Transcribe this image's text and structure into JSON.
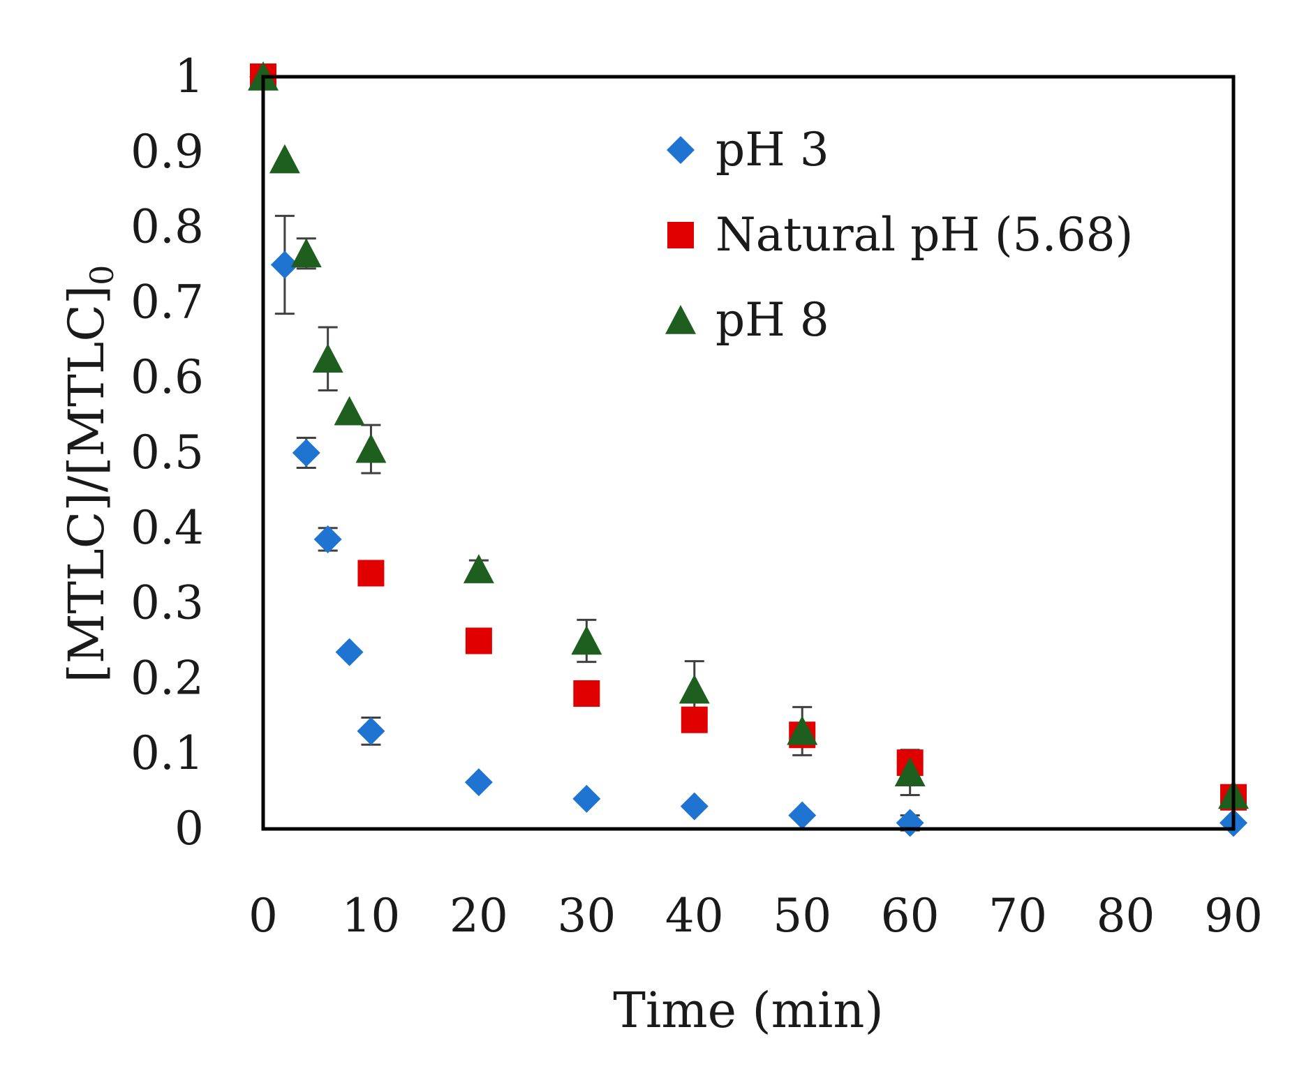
{
  "chart_data": {
    "type": "scatter",
    "title": "",
    "xlabel": "Time (min)",
    "ylabel": "[MTLC]/[MTLC]",
    "ylabel_subscript": "0",
    "xlim": [
      0,
      90
    ],
    "ylim": [
      0,
      1
    ],
    "xticks": [
      0,
      10,
      20,
      30,
      40,
      50,
      60,
      70,
      80,
      90
    ],
    "yticks": [
      0,
      0.1,
      0.2,
      0.3,
      0.4,
      0.5,
      0.6,
      0.7,
      0.8,
      0.9,
      1
    ],
    "xtick_labels": [
      "0",
      "10",
      "20",
      "30",
      "40",
      "50",
      "60",
      "70",
      "80",
      "90"
    ],
    "ytick_labels": [
      "0",
      "0.1",
      "0.2",
      "0.3",
      "0.4",
      "0.5",
      "0.6",
      "0.7",
      "0.8",
      "0.9",
      "1"
    ],
    "grid": false,
    "legend_position": "top-right",
    "series": [
      {
        "name": "pH 3",
        "marker": "diamond",
        "color": "#1f74d1",
        "points": [
          {
            "x": 0,
            "y": 1.0,
            "err": 0
          },
          {
            "x": 2,
            "y": 0.75,
            "err": 0.065
          },
          {
            "x": 4,
            "y": 0.5,
            "err": 0.02
          },
          {
            "x": 6,
            "y": 0.385,
            "err": 0.015
          },
          {
            "x": 8,
            "y": 0.235,
            "err": 0
          },
          {
            "x": 10,
            "y": 0.13,
            "err": 0.018
          },
          {
            "x": 20,
            "y": 0.062,
            "err": 0
          },
          {
            "x": 30,
            "y": 0.04,
            "err": 0
          },
          {
            "x": 40,
            "y": 0.03,
            "err": 0
          },
          {
            "x": 50,
            "y": 0.018,
            "err": 0
          },
          {
            "x": 60,
            "y": 0.008,
            "err": 0.01
          },
          {
            "x": 90,
            "y": 0.008,
            "err": 0
          }
        ]
      },
      {
        "name": "Natural pH (5.68)",
        "marker": "square",
        "color": "#e00000",
        "points": [
          {
            "x": 0,
            "y": 1.0,
            "err": 0
          },
          {
            "x": 10,
            "y": 0.34,
            "err": 0
          },
          {
            "x": 20,
            "y": 0.25,
            "err": 0
          },
          {
            "x": 30,
            "y": 0.18,
            "err": 0
          },
          {
            "x": 40,
            "y": 0.145,
            "err": 0
          },
          {
            "x": 50,
            "y": 0.125,
            "err": 0
          },
          {
            "x": 60,
            "y": 0.088,
            "err": 0.015
          },
          {
            "x": 90,
            "y": 0.042,
            "err": 0
          }
        ]
      },
      {
        "name": "pH 8",
        "marker": "triangle",
        "color": "#1e5e1e",
        "points": [
          {
            "x": 0,
            "y": 1.0,
            "err": 0
          },
          {
            "x": 2,
            "y": 0.89,
            "err": 0
          },
          {
            "x": 4,
            "y": 0.765,
            "err": 0.02
          },
          {
            "x": 6,
            "y": 0.625,
            "err": 0.042
          },
          {
            "x": 8,
            "y": 0.555,
            "err": 0
          },
          {
            "x": 10,
            "y": 0.505,
            "err": 0.032
          },
          {
            "x": 20,
            "y": 0.345,
            "err": 0.012
          },
          {
            "x": 30,
            "y": 0.25,
            "err": 0.028
          },
          {
            "x": 40,
            "y": 0.185,
            "err": 0.038
          },
          {
            "x": 50,
            "y": 0.13,
            "err": 0.032
          },
          {
            "x": 60,
            "y": 0.075,
            "err": 0.03
          },
          {
            "x": 90,
            "y": 0.045,
            "err": 0
          }
        ]
      }
    ]
  }
}
